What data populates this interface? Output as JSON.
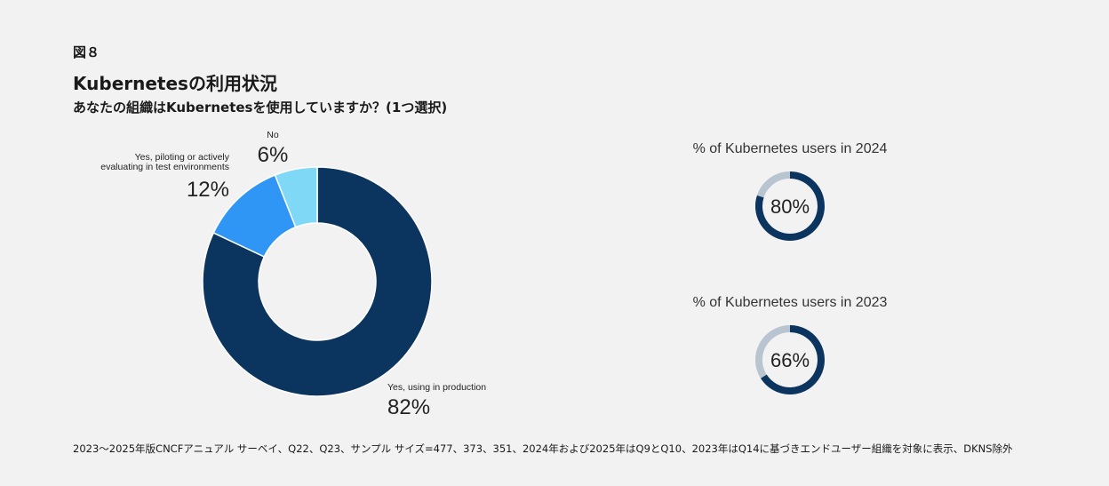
{
  "header": {
    "figure_label": "図８",
    "title": "Kubernetesの利用状況",
    "subtitle": "あなたの組織はKubernetesを使用していますか？(1つ選択)"
  },
  "footnote": "2023〜2025年版CNCFアニュアル サーベイ、Q22、Q23、サンプル サイズ=477、373、351、2024年および2025年はQ9とQ10、2023年はQ14に基づきエンドユーザー組織を対象に表示、DKNS除外",
  "chart_data": [
    {
      "type": "pie",
      "donut": true,
      "slices": [
        {
          "label": "Yes, using in production",
          "label_lines": [
            "Yes, using in production"
          ],
          "value": 82,
          "value_text": "82%",
          "color": "#0b345e"
        },
        {
          "label": "Yes, piloting or actively evaluating in test environments",
          "label_lines": [
            "Yes, piloting or actively",
            "evaluating in test environments"
          ],
          "value": 12,
          "value_text": "12%",
          "color": "#2f96f5"
        },
        {
          "label": "No",
          "label_lines": [
            "No"
          ],
          "value": 6,
          "value_text": "6%",
          "color": "#80d8f7"
        }
      ]
    },
    {
      "type": "pie",
      "donut": true,
      "title": "% of Kubernetes users in 2024",
      "value": 80,
      "value_text": "80%",
      "color": "#0b345e",
      "track_color": "#b8c4d0"
    },
    {
      "type": "pie",
      "donut": true,
      "title": "% of Kubernetes users in 2023",
      "value": 66,
      "value_text": "66%",
      "color": "#0b345e",
      "track_color": "#b8c4d0"
    }
  ]
}
